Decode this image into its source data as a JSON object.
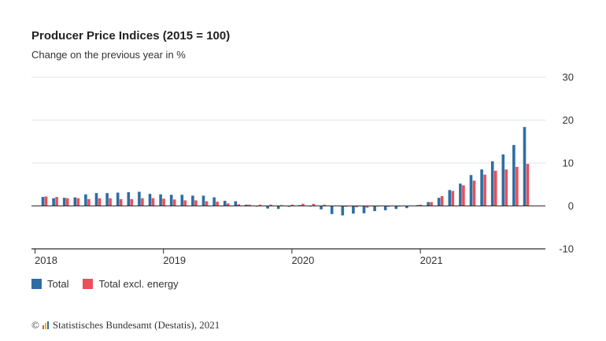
{
  "title": "Producer Price Indices (2015 = 100)",
  "subtitle": "Change on the previous year in %",
  "legend": [
    {
      "label": "Total",
      "color": "#2e6da4"
    },
    {
      "label": "Total excl. energy",
      "color": "#e8505b"
    }
  ],
  "source": {
    "copyright": "©",
    "text": "Statistisches Bundesamt (Destatis), 2021",
    "logo_colors": [
      "#e8505b",
      "#f2b705",
      "#2e6da4"
    ]
  },
  "chart_data": {
    "type": "bar",
    "ylim": [
      -10,
      30
    ],
    "y_ticks": [
      "30",
      "20",
      "10",
      "0",
      "-10"
    ],
    "x_ticks": [
      {
        "label": "2018",
        "index": 0
      },
      {
        "label": "2019",
        "index": 12
      },
      {
        "label": "2020",
        "index": 24
      },
      {
        "label": "2021",
        "index": 36
      }
    ],
    "grid": true,
    "legend_position": "bottom-left",
    "categories": [
      "Jan 2018",
      "Feb 2018",
      "Mar 2018",
      "Apr 2018",
      "May 2018",
      "Jun 2018",
      "Jul 2018",
      "Aug 2018",
      "Sep 2018",
      "Oct 2018",
      "Nov 2018",
      "Dec 2018",
      "Jan 2019",
      "Feb 2019",
      "Mar 2019",
      "Apr 2019",
      "May 2019",
      "Jun 2019",
      "Jul 2019",
      "Aug 2019",
      "Sep 2019",
      "Oct 2019",
      "Nov 2019",
      "Dec 2019",
      "Jan 2020",
      "Feb 2020",
      "Mar 2020",
      "Apr 2020",
      "May 2020",
      "Jun 2020",
      "Jul 2020",
      "Aug 2020",
      "Sep 2020",
      "Oct 2020",
      "Nov 2020",
      "Dec 2020",
      "Jan 2021",
      "Feb 2021",
      "Mar 2021",
      "Apr 2021",
      "May 2021",
      "Jun 2021",
      "Jul 2021",
      "Aug 2021",
      "Sep 2021",
      "Oct 2021"
    ],
    "series": [
      {
        "name": "Total",
        "color": "#2e6da4",
        "values": [
          2.1,
          1.8,
          1.9,
          2.0,
          2.7,
          3.0,
          3.0,
          3.1,
          3.2,
          3.3,
          2.8,
          2.7,
          2.6,
          2.6,
          2.4,
          2.4,
          2.0,
          1.2,
          1.1,
          0.3,
          -0.1,
          -0.6,
          -0.7,
          -0.2,
          0.2,
          -0.1,
          -0.8,
          -1.9,
          -2.2,
          -1.8,
          -1.7,
          -1.2,
          -1.0,
          -0.7,
          -0.5,
          0.2,
          0.9,
          1.9,
          3.7,
          5.2,
          7.2,
          8.5,
          10.4,
          12.0,
          14.2,
          18.4
        ]
      },
      {
        "name": "Total excl. energy",
        "color": "#e8505b",
        "values": [
          2.2,
          2.1,
          1.8,
          1.8,
          1.6,
          1.8,
          1.8,
          1.6,
          1.6,
          1.8,
          1.8,
          1.7,
          1.5,
          1.3,
          1.3,
          1.1,
          1.0,
          0.6,
          0.4,
          0.3,
          0.3,
          0.3,
          0.2,
          0.3,
          0.5,
          0.5,
          0.3,
          0.1,
          -0.2,
          -0.3,
          -0.4,
          -0.1,
          -0.2,
          0.0,
          0.1,
          0.3,
          0.9,
          2.3,
          3.5,
          4.8,
          5.9,
          7.3,
          8.2,
          8.5,
          9.1,
          9.8
        ]
      }
    ]
  }
}
